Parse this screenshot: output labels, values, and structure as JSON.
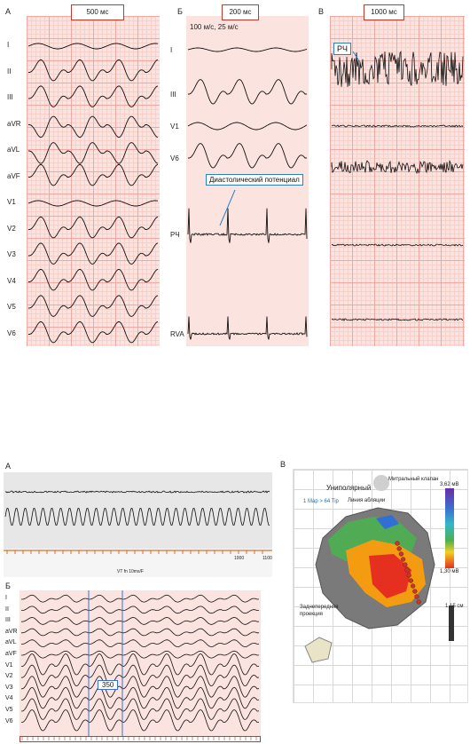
{
  "top": {
    "panelA": {
      "letter": "А",
      "scale": "500 мс",
      "leads": [
        "I",
        "II",
        "III",
        "aVR",
        "aVL",
        "aVF",
        "V1",
        "V2",
        "V3",
        "V4",
        "V5",
        "V6"
      ]
    },
    "panelB": {
      "letter": "Б",
      "scale": "200 мс",
      "speed": "100 м/с, 25 м/с",
      "leads": [
        "I",
        "III",
        "V1",
        "V6",
        "РЧ",
        "RVA"
      ],
      "callout": "Диастолический потенциал"
    },
    "panelC": {
      "letter": "В",
      "scale": "1000 мс",
      "callout": "РЧ"
    }
  },
  "bottom": {
    "panelA": {
      "letter": "А",
      "caption": "VT fn 10ms/F",
      "axis_ticks": [
        "1000",
        "1100"
      ]
    },
    "panelB": {
      "letter": "Б",
      "leads": [
        "I",
        "II",
        "III",
        "aVR",
        "aVL",
        "aVF",
        "V1",
        "V2",
        "V3",
        "V4",
        "V5",
        "V6"
      ],
      "interval": "350"
    },
    "panelC": {
      "letter": "В",
      "mode": "Униполярный",
      "map_info": "1 Map > 64 Tip",
      "mitral": "Митральный клапан",
      "ablation_line": "Линия абляции",
      "scale_top": "3,62 мВ",
      "scale_bottom": "1,30 мВ",
      "view": "Заднепередняя проекция",
      "size": "1,15 см"
    },
    "colors": {
      "grid": "#f3a7a0",
      "callout_border": "#2b7fc4",
      "marker_lines": "#3a6fd0"
    }
  }
}
